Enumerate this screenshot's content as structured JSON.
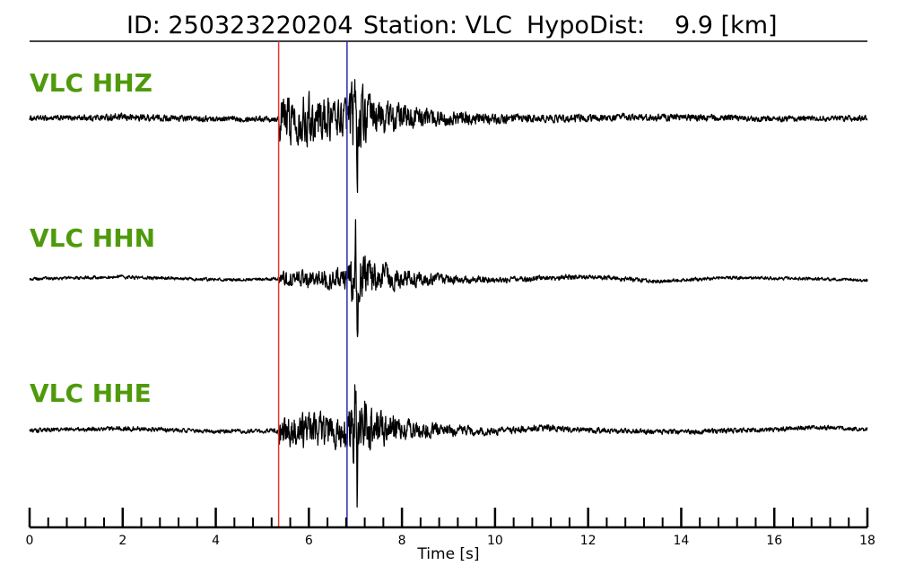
{
  "title": {
    "id_text": "ID: 250323220204",
    "station_text": "Station: VLC",
    "dist_label": "HypoDist:",
    "dist_value": "9.9 [km]"
  },
  "colors": {
    "label": "#4f9a0b",
    "trace": "#000000",
    "p_pick": "#e8342c",
    "s_pick": "#2a2ab8"
  },
  "chart_data": {
    "type": "line",
    "title": "ID: 250323220204    Station: VLC   HypoDist:      9.9 [km]",
    "xlabel": "Time [s]",
    "ylabel": "",
    "xlim": [
      0,
      18
    ],
    "grid": false,
    "x_ticks": [
      0,
      2,
      4,
      6,
      8,
      10,
      12,
      14,
      16,
      18
    ],
    "minor_tick_step": 0.4,
    "picks": [
      {
        "phase": "P",
        "time": 5.35,
        "color": "#e8342c"
      },
      {
        "phase": "S",
        "time": 6.82,
        "color": "#2a2ab8"
      }
    ],
    "series": [
      {
        "name": "VLC HHZ",
        "envelope": [
          [
            0,
            0.06
          ],
          [
            1,
            0.07
          ],
          [
            2,
            0.09
          ],
          [
            3,
            0.08
          ],
          [
            4,
            0.07
          ],
          [
            5,
            0.07
          ],
          [
            5.34,
            0.08
          ],
          [
            5.36,
            0.55
          ],
          [
            6,
            0.6
          ],
          [
            6.5,
            0.5
          ],
          [
            6.8,
            0.45
          ],
          [
            7.0,
            1.0
          ],
          [
            7.3,
            0.55
          ],
          [
            8,
            0.3
          ],
          [
            9,
            0.18
          ],
          [
            10,
            0.13
          ],
          [
            11,
            0.1
          ],
          [
            13,
            0.09
          ],
          [
            15,
            0.08
          ],
          [
            18,
            0.07
          ]
        ],
        "baseline_wobble": [
          [
            0,
            0.0
          ],
          [
            2,
            0.02
          ],
          [
            4,
            -0.01
          ],
          [
            6,
            0.0
          ],
          [
            8,
            0.03
          ],
          [
            10,
            -0.02
          ],
          [
            12,
            0.01
          ],
          [
            14,
            0.02
          ],
          [
            16,
            -0.01
          ],
          [
            18,
            0.0
          ]
        ]
      },
      {
        "name": "VLC HHN",
        "envelope": [
          [
            0,
            0.05
          ],
          [
            1,
            0.05
          ],
          [
            2,
            0.06
          ],
          [
            4,
            0.05
          ],
          [
            5,
            0.05
          ],
          [
            5.34,
            0.06
          ],
          [
            5.36,
            0.25
          ],
          [
            6,
            0.28
          ],
          [
            6.8,
            0.35
          ],
          [
            7.0,
            1.0
          ],
          [
            7.4,
            0.55
          ],
          [
            8,
            0.3
          ],
          [
            9,
            0.15
          ],
          [
            10,
            0.1
          ],
          [
            12,
            0.08
          ],
          [
            14,
            0.06
          ],
          [
            16,
            0.05
          ],
          [
            18,
            0.05
          ]
        ],
        "baseline_wobble": [
          [
            0,
            0.0
          ],
          [
            2,
            0.05
          ],
          [
            4,
            -0.02
          ],
          [
            6,
            0.0
          ],
          [
            8,
            0.02
          ],
          [
            10,
            -0.03
          ],
          [
            12,
            0.06
          ],
          [
            13.5,
            -0.06
          ],
          [
            15,
            0.03
          ],
          [
            17,
            0.0
          ],
          [
            18,
            -0.03
          ]
        ]
      },
      {
        "name": "VLC HHE",
        "envelope": [
          [
            0,
            0.05
          ],
          [
            1,
            0.05
          ],
          [
            2,
            0.06
          ],
          [
            4,
            0.05
          ],
          [
            5,
            0.05
          ],
          [
            5.34,
            0.06
          ],
          [
            5.36,
            0.4
          ],
          [
            6,
            0.42
          ],
          [
            6.8,
            0.4
          ],
          [
            7.0,
            1.0
          ],
          [
            7.4,
            0.5
          ],
          [
            8,
            0.28
          ],
          [
            9,
            0.14
          ],
          [
            10,
            0.09
          ],
          [
            12,
            0.07
          ],
          [
            14,
            0.06
          ],
          [
            16,
            0.06
          ],
          [
            18,
            0.05
          ]
        ],
        "baseline_wobble": [
          [
            0,
            0.0
          ],
          [
            2,
            0.04
          ],
          [
            4,
            -0.02
          ],
          [
            6,
            0.0
          ],
          [
            8,
            0.02
          ],
          [
            10,
            -0.02
          ],
          [
            11,
            0.05
          ],
          [
            12.5,
            -0.01
          ],
          [
            14,
            -0.03
          ],
          [
            16,
            0.02
          ],
          [
            17,
            0.06
          ],
          [
            18,
            0.02
          ]
        ]
      }
    ]
  }
}
